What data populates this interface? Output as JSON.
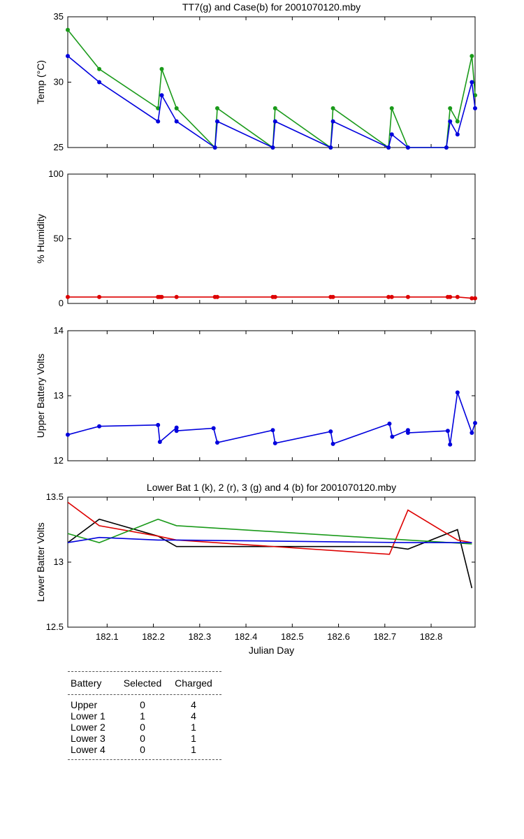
{
  "colors": {
    "green": "#1a9a1a",
    "blue": "#0000dd",
    "red": "#dd0000",
    "black": "#000000"
  },
  "chart_data": [
    {
      "type": "line",
      "title": "TT7(g) and Case(b) for 2001070120.mby",
      "ylabel": "Temp  (°C)",
      "xlabel": "",
      "xlim": [
        182.015,
        182.895
      ],
      "ylim": [
        25,
        35
      ],
      "yticks": [
        "25",
        "30",
        "35"
      ],
      "xticks": [],
      "markers": true,
      "series": [
        {
          "color": "green",
          "x": [
            182.015,
            182.083,
            182.21,
            182.218,
            182.25,
            182.333,
            182.338,
            182.458,
            182.463,
            182.583,
            182.588,
            182.708,
            182.715,
            182.75,
            182.833,
            182.841,
            182.857,
            182.888,
            182.895
          ],
          "y": [
            34,
            31,
            28,
            31,
            28,
            25,
            28,
            25,
            28,
            25,
            28,
            25,
            28,
            25,
            25,
            28,
            27,
            32,
            29
          ]
        },
        {
          "color": "blue",
          "x": [
            182.015,
            182.083,
            182.21,
            182.218,
            182.25,
            182.333,
            182.338,
            182.458,
            182.463,
            182.583,
            182.588,
            182.708,
            182.715,
            182.75,
            182.833,
            182.841,
            182.857,
            182.888,
            182.895
          ],
          "y": [
            32,
            30,
            27,
            29,
            27,
            25,
            27,
            25,
            27,
            25,
            27,
            25,
            26,
            25,
            25,
            27,
            26,
            30,
            28
          ]
        }
      ]
    },
    {
      "type": "line",
      "title": "",
      "ylabel": "% Humidity",
      "xlabel": "",
      "xlim": [
        182.015,
        182.895
      ],
      "ylim": [
        0,
        100
      ],
      "yticks": [
        "0",
        "50",
        "100"
      ],
      "xticks": [],
      "markers": true,
      "series": [
        {
          "color": "red",
          "x": [
            182.015,
            182.083,
            182.21,
            182.214,
            182.218,
            182.25,
            182.333,
            182.338,
            182.458,
            182.463,
            182.583,
            182.588,
            182.708,
            182.715,
            182.75,
            182.836,
            182.841,
            182.857,
            182.888,
            182.895
          ],
          "y": [
            5,
            5,
            5,
            5,
            5,
            5,
            5,
            5,
            5,
            5,
            5,
            5,
            5,
            5,
            5,
            5,
            5,
            5,
            4,
            4
          ]
        }
      ]
    },
    {
      "type": "line",
      "title": "",
      "ylabel": "Upper Battery Volts",
      "xlabel": "",
      "xlim": [
        182.015,
        182.895
      ],
      "ylim": [
        12,
        14
      ],
      "yticks": [
        "12",
        "13",
        "14"
      ],
      "xticks": [],
      "markers": true,
      "series": [
        {
          "color": "blue",
          "x": [
            182.015,
            182.083,
            182.21,
            182.214,
            182.25,
            182.25,
            182.33,
            182.338,
            182.458,
            182.463,
            182.583,
            182.588,
            182.71,
            182.716,
            182.75,
            182.75,
            182.836,
            182.841,
            182.857,
            182.888,
            182.895
          ],
          "y": [
            12.4,
            12.53,
            12.55,
            12.29,
            12.51,
            12.46,
            12.5,
            12.28,
            12.47,
            12.27,
            12.45,
            12.26,
            12.57,
            12.37,
            12.47,
            12.43,
            12.46,
            12.25,
            13.05,
            12.43,
            12.58
          ]
        }
      ]
    },
    {
      "type": "line",
      "title": "Lower Bat 1 (k), 2 (r), 3 (g) and 4 (b) for 2001070120.mby",
      "ylabel": "Lower Batter Volts",
      "xlabel": "Julian Day",
      "xlim": [
        182.015,
        182.895
      ],
      "ylim": [
        12.5,
        13.5
      ],
      "yticks": [
        "12.5",
        "13",
        "13.5"
      ],
      "xticks": [
        "182.1",
        "182.2",
        "182.3",
        "182.4",
        "182.5",
        "182.6",
        "182.7",
        "182.8"
      ],
      "markers": false,
      "series": [
        {
          "color": "black",
          "x": [
            182.015,
            182.083,
            182.21,
            182.25,
            182.71,
            182.75,
            182.857,
            182.888
          ],
          "y": [
            13.15,
            13.33,
            13.2,
            13.12,
            13.12,
            13.1,
            13.25,
            12.8
          ]
        },
        {
          "color": "red",
          "x": [
            182.015,
            182.083,
            182.21,
            182.25,
            182.71,
            182.75,
            182.857,
            182.888
          ],
          "y": [
            13.46,
            13.28,
            13.2,
            13.17,
            13.06,
            13.4,
            13.17,
            13.15
          ]
        },
        {
          "color": "green",
          "x": [
            182.015,
            182.083,
            182.21,
            182.25,
            182.75,
            182.888
          ],
          "y": [
            13.22,
            13.15,
            13.33,
            13.28,
            13.17,
            13.14
          ]
        },
        {
          "color": "blue",
          "x": [
            182.015,
            182.083,
            182.21,
            182.25,
            182.75,
            182.888
          ],
          "y": [
            13.15,
            13.19,
            13.17,
            13.17,
            13.15,
            13.15
          ]
        }
      ]
    }
  ],
  "table": {
    "headers": [
      "Battery",
      "Selected",
      "Charged"
    ],
    "rows": [
      [
        "Upper",
        "0",
        "4"
      ],
      [
        "Lower 1",
        "1",
        "4"
      ],
      [
        "Lower 2",
        "0",
        "1"
      ],
      [
        "Lower 3",
        "0",
        "1"
      ],
      [
        "Lower 4",
        "0",
        "1"
      ]
    ]
  }
}
